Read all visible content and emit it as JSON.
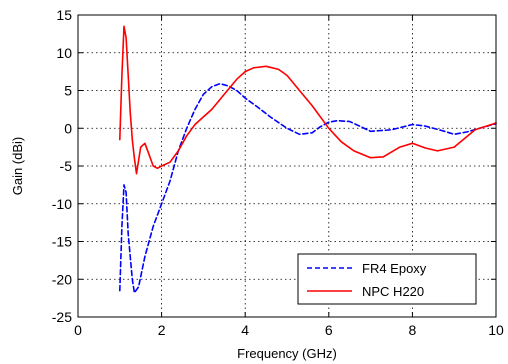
{
  "chart_data": {
    "type": "line",
    "title": "",
    "xlabel": "Frequency (GHz)",
    "ylabel": "Gain (dBi)",
    "xlim": [
      0,
      10
    ],
    "ylim": [
      -25,
      15
    ],
    "xticks": [
      0,
      2,
      4,
      6,
      8,
      10
    ],
    "xtick_labels": [
      "0",
      "2",
      "4",
      "6",
      "8",
      "10"
    ],
    "yticks": [
      15,
      10,
      5,
      0,
      -5,
      -10,
      -15,
      -20,
      -25
    ],
    "ytick_labels": [
      "15",
      "10",
      "5",
      "0",
      "-5",
      "-10",
      "-15",
      "-20",
      "-25"
    ],
    "grid": true,
    "grid_style": "dotted",
    "legend_position": "bottom-right",
    "series": [
      {
        "name": "FR4 Epoxy",
        "color": "#0000ff",
        "line_style": "dashed",
        "x": [
          1.0,
          1.05,
          1.1,
          1.15,
          1.2,
          1.3,
          1.35,
          1.45,
          1.6,
          1.8,
          2.0,
          2.2,
          2.4,
          2.6,
          2.8,
          3.0,
          3.2,
          3.4,
          3.6,
          3.8,
          4.0,
          4.3,
          4.6,
          5.0,
          5.3,
          5.6,
          5.8,
          6.0,
          6.2,
          6.5,
          7.0,
          7.5,
          8.0,
          8.3,
          8.7,
          9.0,
          9.3,
          9.6,
          10.0
        ],
        "y": [
          -21.5,
          -13.0,
          -7.5,
          -8.5,
          -14.0,
          -20.0,
          -21.8,
          -21.0,
          -17.0,
          -13.0,
          -10.0,
          -7.0,
          -3.0,
          0.0,
          2.5,
          4.5,
          5.5,
          5.9,
          5.6,
          5.0,
          4.0,
          2.8,
          1.5,
          0.0,
          -0.8,
          -0.6,
          0.2,
          0.8,
          1.0,
          0.9,
          -0.4,
          -0.2,
          0.5,
          0.3,
          -0.3,
          -0.8,
          -0.5,
          0.0,
          0.6
        ]
      },
      {
        "name": "NPC H220",
        "color": "#ff0000",
        "line_style": "solid",
        "x": [
          1.0,
          1.05,
          1.1,
          1.15,
          1.2,
          1.25,
          1.3,
          1.35,
          1.4,
          1.5,
          1.6,
          1.7,
          1.8,
          1.9,
          2.0,
          2.2,
          2.4,
          2.6,
          2.8,
          3.0,
          3.2,
          3.5,
          3.8,
          4.0,
          4.2,
          4.5,
          4.8,
          5.0,
          5.3,
          5.6,
          6.0,
          6.3,
          6.6,
          7.0,
          7.3,
          7.7,
          8.0,
          8.3,
          8.6,
          9.0,
          9.5,
          10.0
        ],
        "y": [
          -1.5,
          7.0,
          13.5,
          12.0,
          7.0,
          2.0,
          -1.5,
          -4.0,
          -6.0,
          -2.5,
          -2.0,
          -3.5,
          -5.0,
          -5.3,
          -5.0,
          -4.5,
          -3.0,
          -1.0,
          0.5,
          1.5,
          2.5,
          4.5,
          6.5,
          7.5,
          8.0,
          8.2,
          7.8,
          7.0,
          5.0,
          3.0,
          0.0,
          -1.8,
          -3.0,
          -3.9,
          -3.8,
          -2.5,
          -2.0,
          -2.6,
          -3.0,
          -2.5,
          -0.2,
          0.7
        ]
      }
    ]
  }
}
